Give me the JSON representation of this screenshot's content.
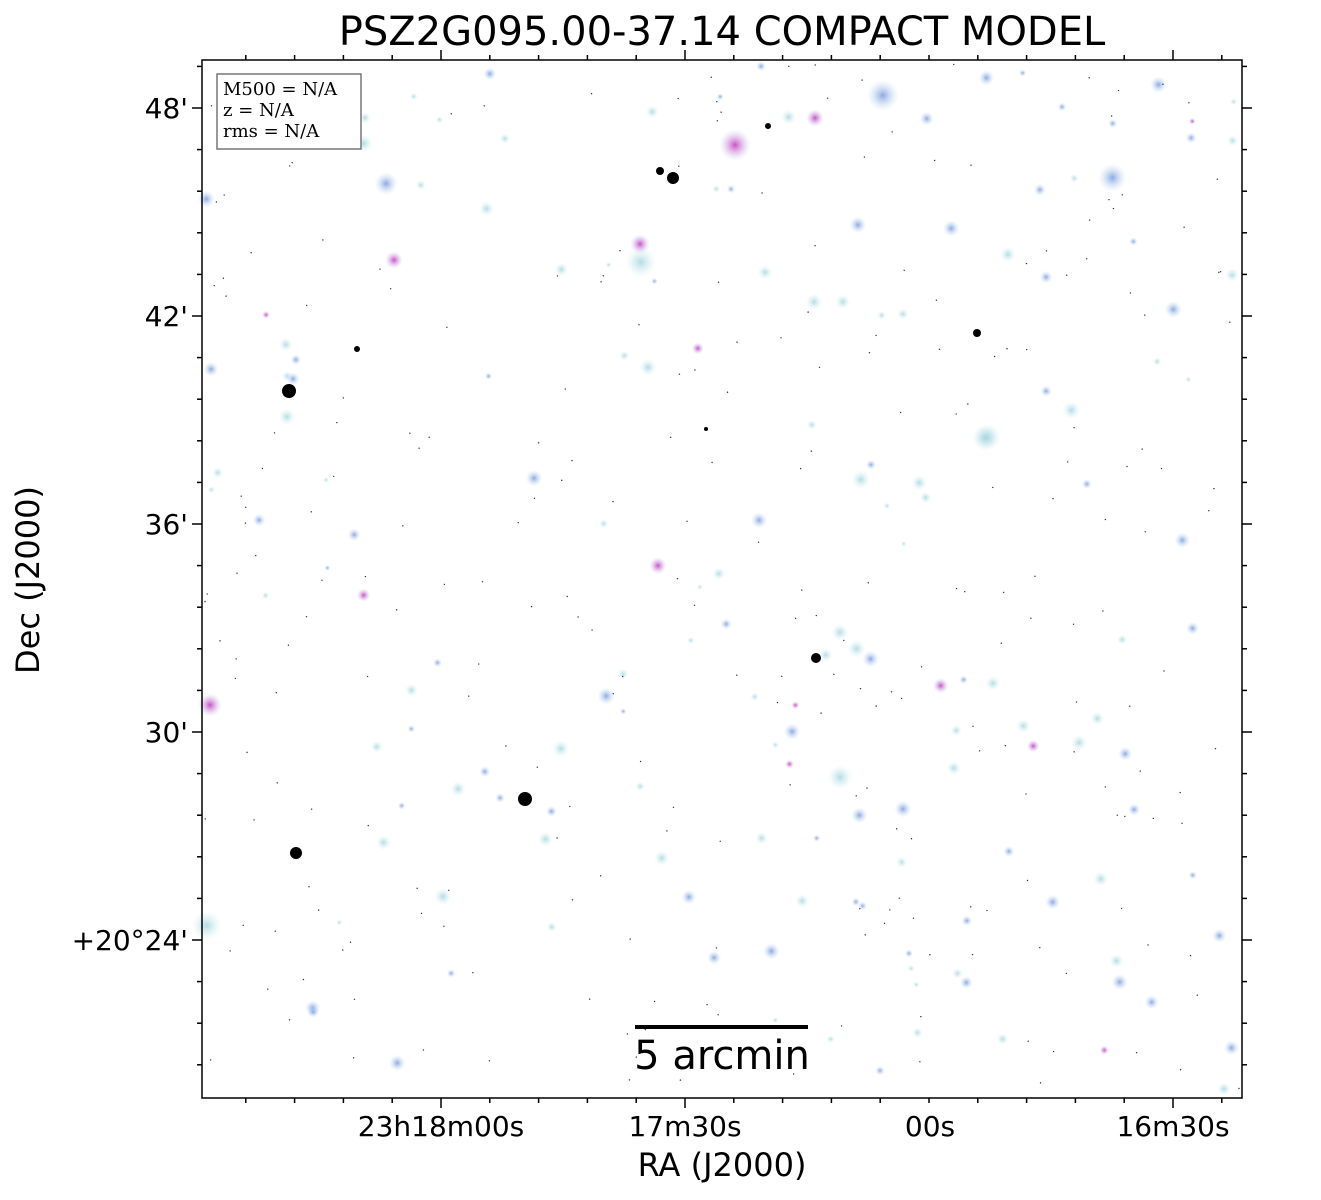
{
  "header": {
    "title": "PSZ2G095.00-37.14 COMPACT MODEL"
  },
  "axes": {
    "x_label": "RA (J2000)",
    "y_label": "Dec (J2000)",
    "x_tick_labels": [
      "23h18m00s",
      "17m30s",
      "00s",
      "16m30s"
    ],
    "y_tick_labels": [
      "48'",
      "42'",
      "36'",
      "30'",
      "+20°24'"
    ]
  },
  "info_box": {
    "lines": [
      "M500 = N/A",
      "z = N/A",
      "rms = N/A"
    ]
  },
  "scale_bar": {
    "label": "5 arcmin"
  }
}
